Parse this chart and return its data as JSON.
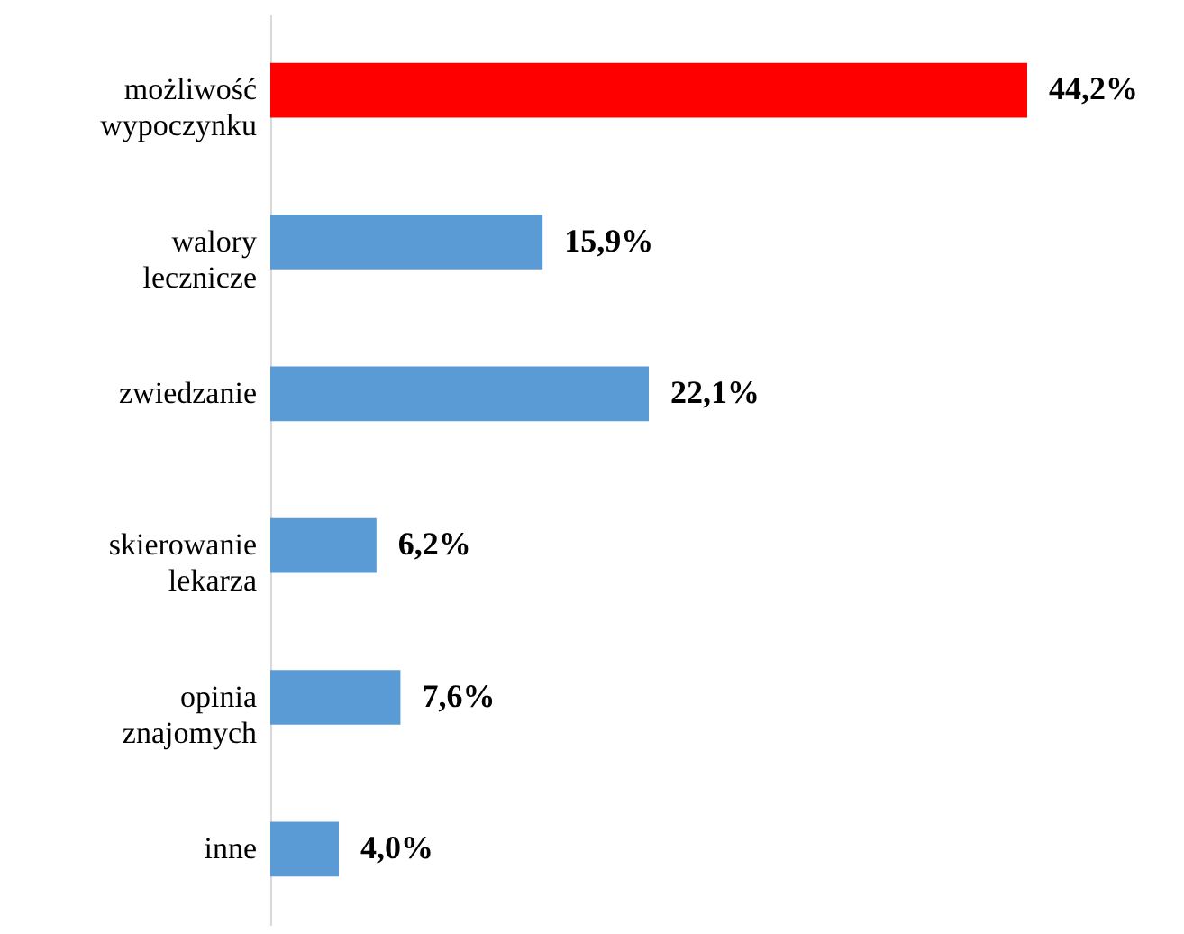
{
  "chart_data": {
    "type": "bar",
    "orientation": "horizontal",
    "categories": [
      "możliwość wypoczynku",
      "walory lecznicze",
      "zwiedzanie",
      "skierowanie lekarza",
      "opinia znajomych",
      "inne"
    ],
    "values": [
      44.2,
      15.9,
      22.1,
      6.2,
      7.6,
      4.0
    ],
    "colors": [
      "#ff0000",
      "#5b9bd5",
      "#5b9bd5",
      "#5b9bd5",
      "#5b9bd5",
      "#5b9bd5"
    ],
    "value_labels": [
      "44,2%",
      "15,9%",
      "22,1%",
      "6,2%",
      "7,6%",
      "4,0%"
    ]
  }
}
